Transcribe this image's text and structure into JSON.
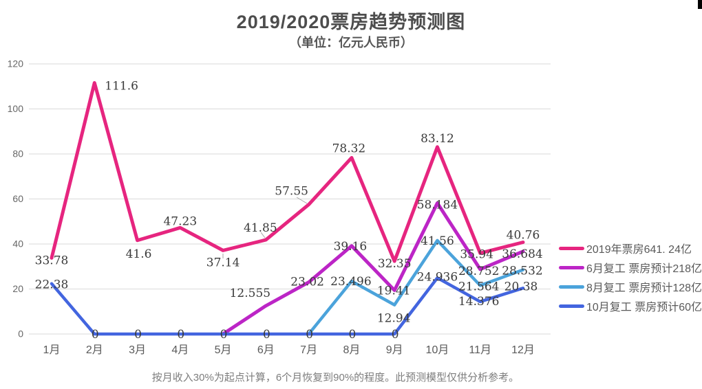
{
  "title": "2019/2020票房趋势预测图",
  "subtitle": "（单位：亿元人民币）",
  "footer": "按月收入30%为起点计算，6个月恢复到90%的程度。此预测模型仅供分析参考。",
  "colors": {
    "grid": "#dadada",
    "axis_text": "#595959",
    "tick_text": "#666666",
    "data_label": "#3a3a3a",
    "leader_line": "#a6a6a6"
  },
  "chart_data": {
    "type": "line",
    "categories": [
      "1月",
      "2月",
      "3月",
      "4月",
      "5月",
      "6月",
      "7月",
      "8月",
      "9月",
      "10月",
      "11月",
      "12月"
    ],
    "y_ticks": [
      0,
      20,
      40,
      60,
      80,
      100,
      120
    ],
    "ylim": [
      0,
      120
    ],
    "grid": true,
    "legend_position": "right",
    "series": [
      {
        "name": "2019年票房641. 24亿",
        "color": "#E6257F",
        "values": [
          33.78,
          111.6,
          41.6,
          47.23,
          37.14,
          41.85,
          57.55,
          78.32,
          32.35,
          83.12,
          35.94,
          40.76
        ]
      },
      {
        "name": "6月复工  票房预计218亿",
        "color": "#BC25C6",
        "values": [
          null,
          null,
          null,
          null,
          0,
          12.555,
          23.02,
          39.16,
          19.41,
          58.184,
          28.752,
          36.684
        ]
      },
      {
        "name": "8月复工  票房预计128亿",
        "color": "#4BA3DB",
        "values": [
          null,
          null,
          null,
          null,
          null,
          null,
          0,
          23.496,
          12.94,
          41.56,
          21.564,
          28.532
        ]
      },
      {
        "name": "10月复工  票房预计60亿",
        "color": "#4365DF",
        "values": [
          22.38,
          0,
          0,
          0,
          0,
          0,
          0,
          0,
          0,
          24.936,
          14.376,
          20.38
        ]
      }
    ]
  }
}
